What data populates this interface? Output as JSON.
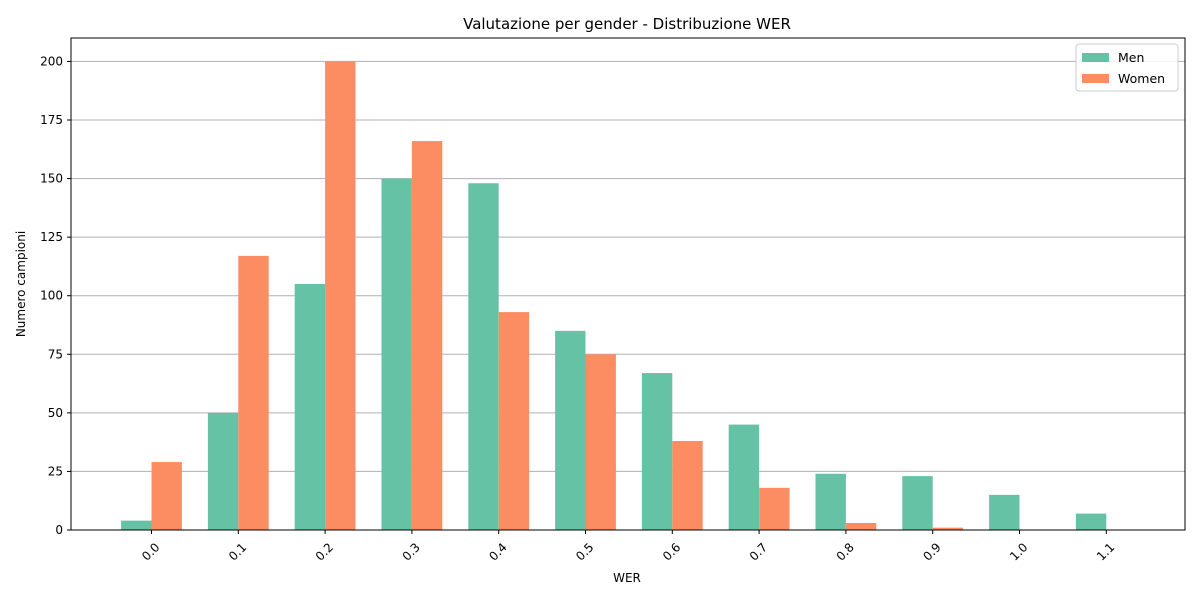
{
  "chart_data": {
    "type": "bar",
    "title": "Valutazione per gender - Distribuzione WER",
    "xlabel": "WER",
    "ylabel": "Numero campioni",
    "categories": [
      "0.0",
      "0.1",
      "0.2",
      "0.3",
      "0.4",
      "0.5",
      "0.6",
      "0.7",
      "0.8",
      "0.9",
      "1.0",
      "1.1"
    ],
    "series": [
      {
        "name": "Men",
        "color": "#66c2a5",
        "values": [
          4,
          50,
          105,
          150,
          148,
          85,
          67,
          45,
          24,
          23,
          15,
          7
        ]
      },
      {
        "name": "Women",
        "color": "#fc8d62",
        "values": [
          29,
          117,
          200,
          166,
          93,
          75,
          38,
          18,
          3,
          1,
          0,
          0
        ]
      }
    ],
    "ylim": [
      0,
      210
    ],
    "yticks": [
      0,
      25,
      50,
      75,
      100,
      125,
      150,
      175,
      200
    ],
    "grid": "y",
    "legend_position": "top-right"
  }
}
